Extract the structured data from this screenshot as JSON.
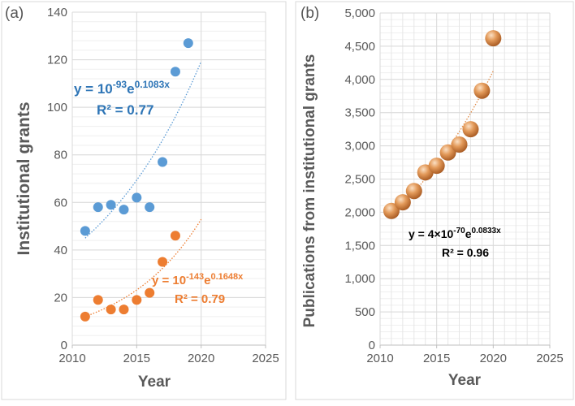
{
  "chart_data": [
    {
      "type": "scatter",
      "panel_label": "(a)",
      "xlabel": "Year",
      "ylabel": "Institutional grants",
      "xlim": [
        2010,
        2025
      ],
      "ylim": [
        0,
        140
      ],
      "xticks": [
        "2010",
        "2015",
        "2020",
        "2025"
      ],
      "yticks": [
        "0",
        "20",
        "40",
        "60",
        "80",
        "100",
        "120",
        "140"
      ],
      "grid": true,
      "series": [
        {
          "name": "blue",
          "color": "#5B9BD5",
          "x": [
            2011,
            2012,
            2013,
            2014,
            2015,
            2016,
            2017,
            2018,
            2019
          ],
          "y": [
            48,
            58,
            59,
            57,
            62,
            58,
            77,
            115,
            127
          ],
          "trend": {
            "type": "exponential",
            "x_range": [
              2011,
              2020
            ],
            "y_start": 45,
            "rate": 0.1083
          },
          "equation": {
            "lhs": "y = 10",
            "exp1": "-93",
            "base2": "e",
            "exp2": "0.1083x",
            "r2": "R² = 0.77"
          },
          "label_color": "#2E75B6"
        },
        {
          "name": "orange",
          "color": "#ED7D31",
          "x": [
            2011,
            2012,
            2013,
            2014,
            2015,
            2016,
            2017,
            2018
          ],
          "y": [
            12,
            19,
            15,
            15,
            19,
            22,
            35,
            46
          ],
          "trend": {
            "type": "exponential",
            "x_range": [
              2011,
              2020
            ],
            "y_start": 12,
            "rate": 0.1648
          },
          "equation": {
            "lhs": "y = 10",
            "exp1": "-143",
            "base2": "e",
            "exp2": "0.1648x",
            "r2": "R² = 0.79"
          },
          "label_color": "#ED7D31"
        }
      ]
    },
    {
      "type": "scatter",
      "panel_label": "(b)",
      "xlabel": "Year",
      "ylabel": "Publications from institutional grants",
      "xlim": [
        2010,
        2025
      ],
      "ylim": [
        0,
        5000
      ],
      "xticks": [
        "2010",
        "2015",
        "2020",
        "2025"
      ],
      "yticks": [
        "0",
        "500",
        "1,000",
        "1,500",
        "2,000",
        "2,500",
        "3,000",
        "3,500",
        "4,000",
        "4,500",
        "5,000"
      ],
      "grid": true,
      "series": [
        {
          "name": "publications",
          "color": "#E08A45",
          "x": [
            2011,
            2012,
            2013,
            2014,
            2015,
            2016,
            2017,
            2018,
            2019,
            2020
          ],
          "y": [
            2020,
            2150,
            2320,
            2600,
            2700,
            2900,
            3020,
            3250,
            3830,
            4620
          ],
          "trend": {
            "type": "exponential",
            "x_range": [
              2011,
              2020
            ],
            "y_start": 1950,
            "rate": 0.0833
          },
          "equation": {
            "lhs": "y = 4×10",
            "exp1": "-70",
            "base2": "e",
            "exp2": "0.0833x",
            "r2": "R² = 0.96"
          },
          "label_color": "#000000"
        }
      ]
    }
  ]
}
